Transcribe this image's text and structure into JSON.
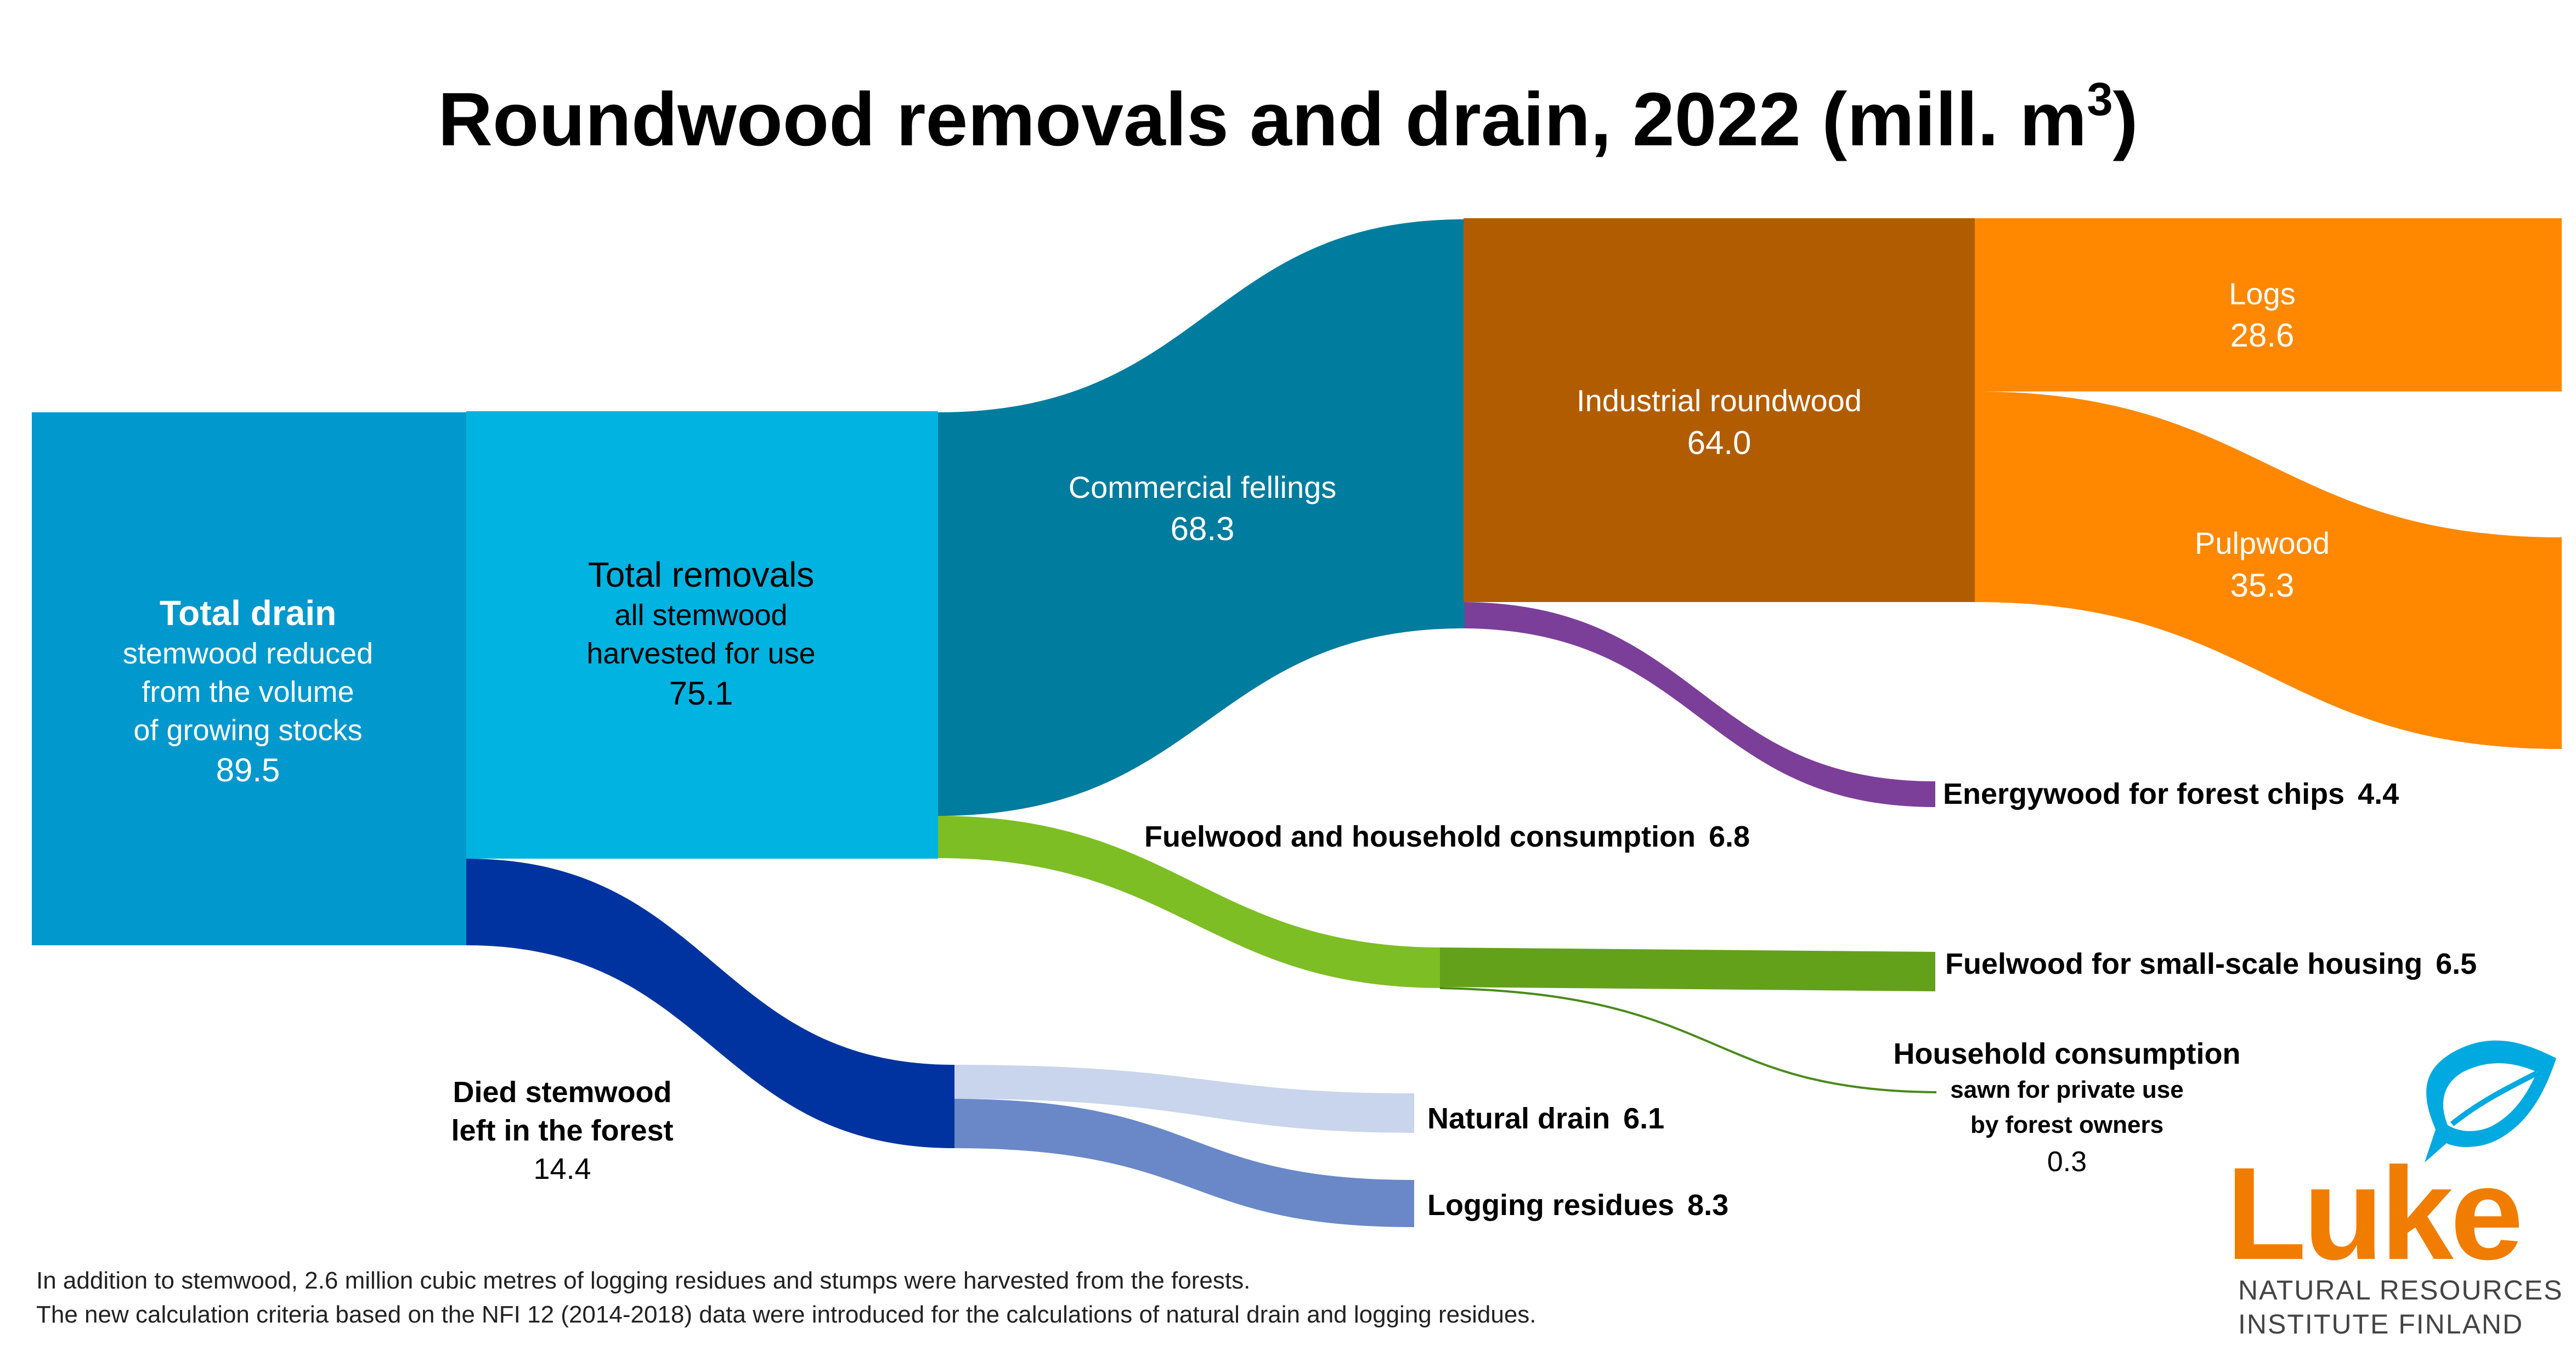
{
  "title": "Roundwood removals and drain, 2022 (mill. m",
  "title_superscript": "3",
  "title_suffix": ")",
  "colors": {
    "total_drain": "#0098cd",
    "total_removals": "#00b3e1",
    "commercial_fellings": "#007c9e",
    "industrial_roundwood": "#b25c00",
    "logs_pulpwood": "#ff8800",
    "energywood": "#7b3f99",
    "fuelwood_light": "#7dbe24",
    "fuelwood_dark": "#63a11b",
    "household_line": "#4a8a1a",
    "died_stemwood": "#0033a0",
    "natural_drain": "#c9d5ec",
    "logging_residues": "#6a88c8",
    "logo_orange": "#f07d00",
    "logo_blue": "#00a9e0"
  },
  "nodes": {
    "total_drain": {
      "name": "Total drain",
      "line1": "stemwood reduced",
      "line2": "from the volume",
      "line3": "of growing stocks",
      "value": "89.5"
    },
    "total_removals": {
      "name": "Total removals",
      "line1": "all stemwood",
      "line2": "harvested for use",
      "value": "75.1"
    },
    "commercial_fellings": {
      "name": "Commercial fellings",
      "value": "68.3"
    },
    "industrial_roundwood": {
      "name": "Industrial roundwood",
      "value": "64.0"
    },
    "logs": {
      "name": "Logs",
      "value": "28.6"
    },
    "pulpwood": {
      "name": "Pulpwood",
      "value": "35.3"
    },
    "energywood": {
      "name": "Energywood for forest chips",
      "value": "4.4"
    },
    "fuelwood_household": {
      "name": "Fuelwood and household consumption",
      "value": "6.8"
    },
    "fuelwood_small_scale": {
      "name": "Fuelwood for small-scale housing",
      "value": "6.5"
    },
    "household_consumption": {
      "name": "Household consumption",
      "line1": "sawn for private use",
      "line2": "by forest owners",
      "value": "0.3"
    },
    "died_stemwood": {
      "name": "Died stemwood",
      "line1": "left in the forest",
      "value": "14.4"
    },
    "natural_drain": {
      "name": "Natural drain",
      "value": "6.1"
    },
    "logging_residues": {
      "name": "Logging residues",
      "value": "8.3"
    }
  },
  "flows": [
    {
      "from": "Total drain",
      "to": "Total removals",
      "value": 75.1
    },
    {
      "from": "Total drain",
      "to": "Died stemwood",
      "value": 14.4
    },
    {
      "from": "Total removals",
      "to": "Commercial fellings",
      "value": 68.3
    },
    {
      "from": "Total removals",
      "to": "Fuelwood and household consumption",
      "value": 6.8
    },
    {
      "from": "Commercial fellings",
      "to": "Industrial roundwood",
      "value": 64.0
    },
    {
      "from": "Commercial fellings",
      "to": "Energywood for forest chips",
      "value": 4.4
    },
    {
      "from": "Industrial roundwood",
      "to": "Logs",
      "value": 28.6
    },
    {
      "from": "Industrial roundwood",
      "to": "Pulpwood",
      "value": 35.3
    },
    {
      "from": "Fuelwood and household consumption",
      "to": "Fuelwood for small-scale housing",
      "value": 6.5
    },
    {
      "from": "Fuelwood and household consumption",
      "to": "Household consumption",
      "value": 0.3
    },
    {
      "from": "Died stemwood",
      "to": "Natural drain",
      "value": 6.1
    },
    {
      "from": "Died stemwood",
      "to": "Logging residues",
      "value": 8.3
    }
  ],
  "footnotes": [
    "In addition to stemwood, 2.6 million cubic metres of logging residues and stumps were harvested from the forests.",
    "The new calculation criteria based on the NFI 12 (2014-2018) data were introduced for the calculations of natural drain and logging residues."
  ],
  "logo": {
    "word": "Luke",
    "sub1": "NATURAL RESOURCES",
    "sub2": "INSTITUTE FINLAND",
    "icon": "leaf-speech-bubble-icon"
  }
}
